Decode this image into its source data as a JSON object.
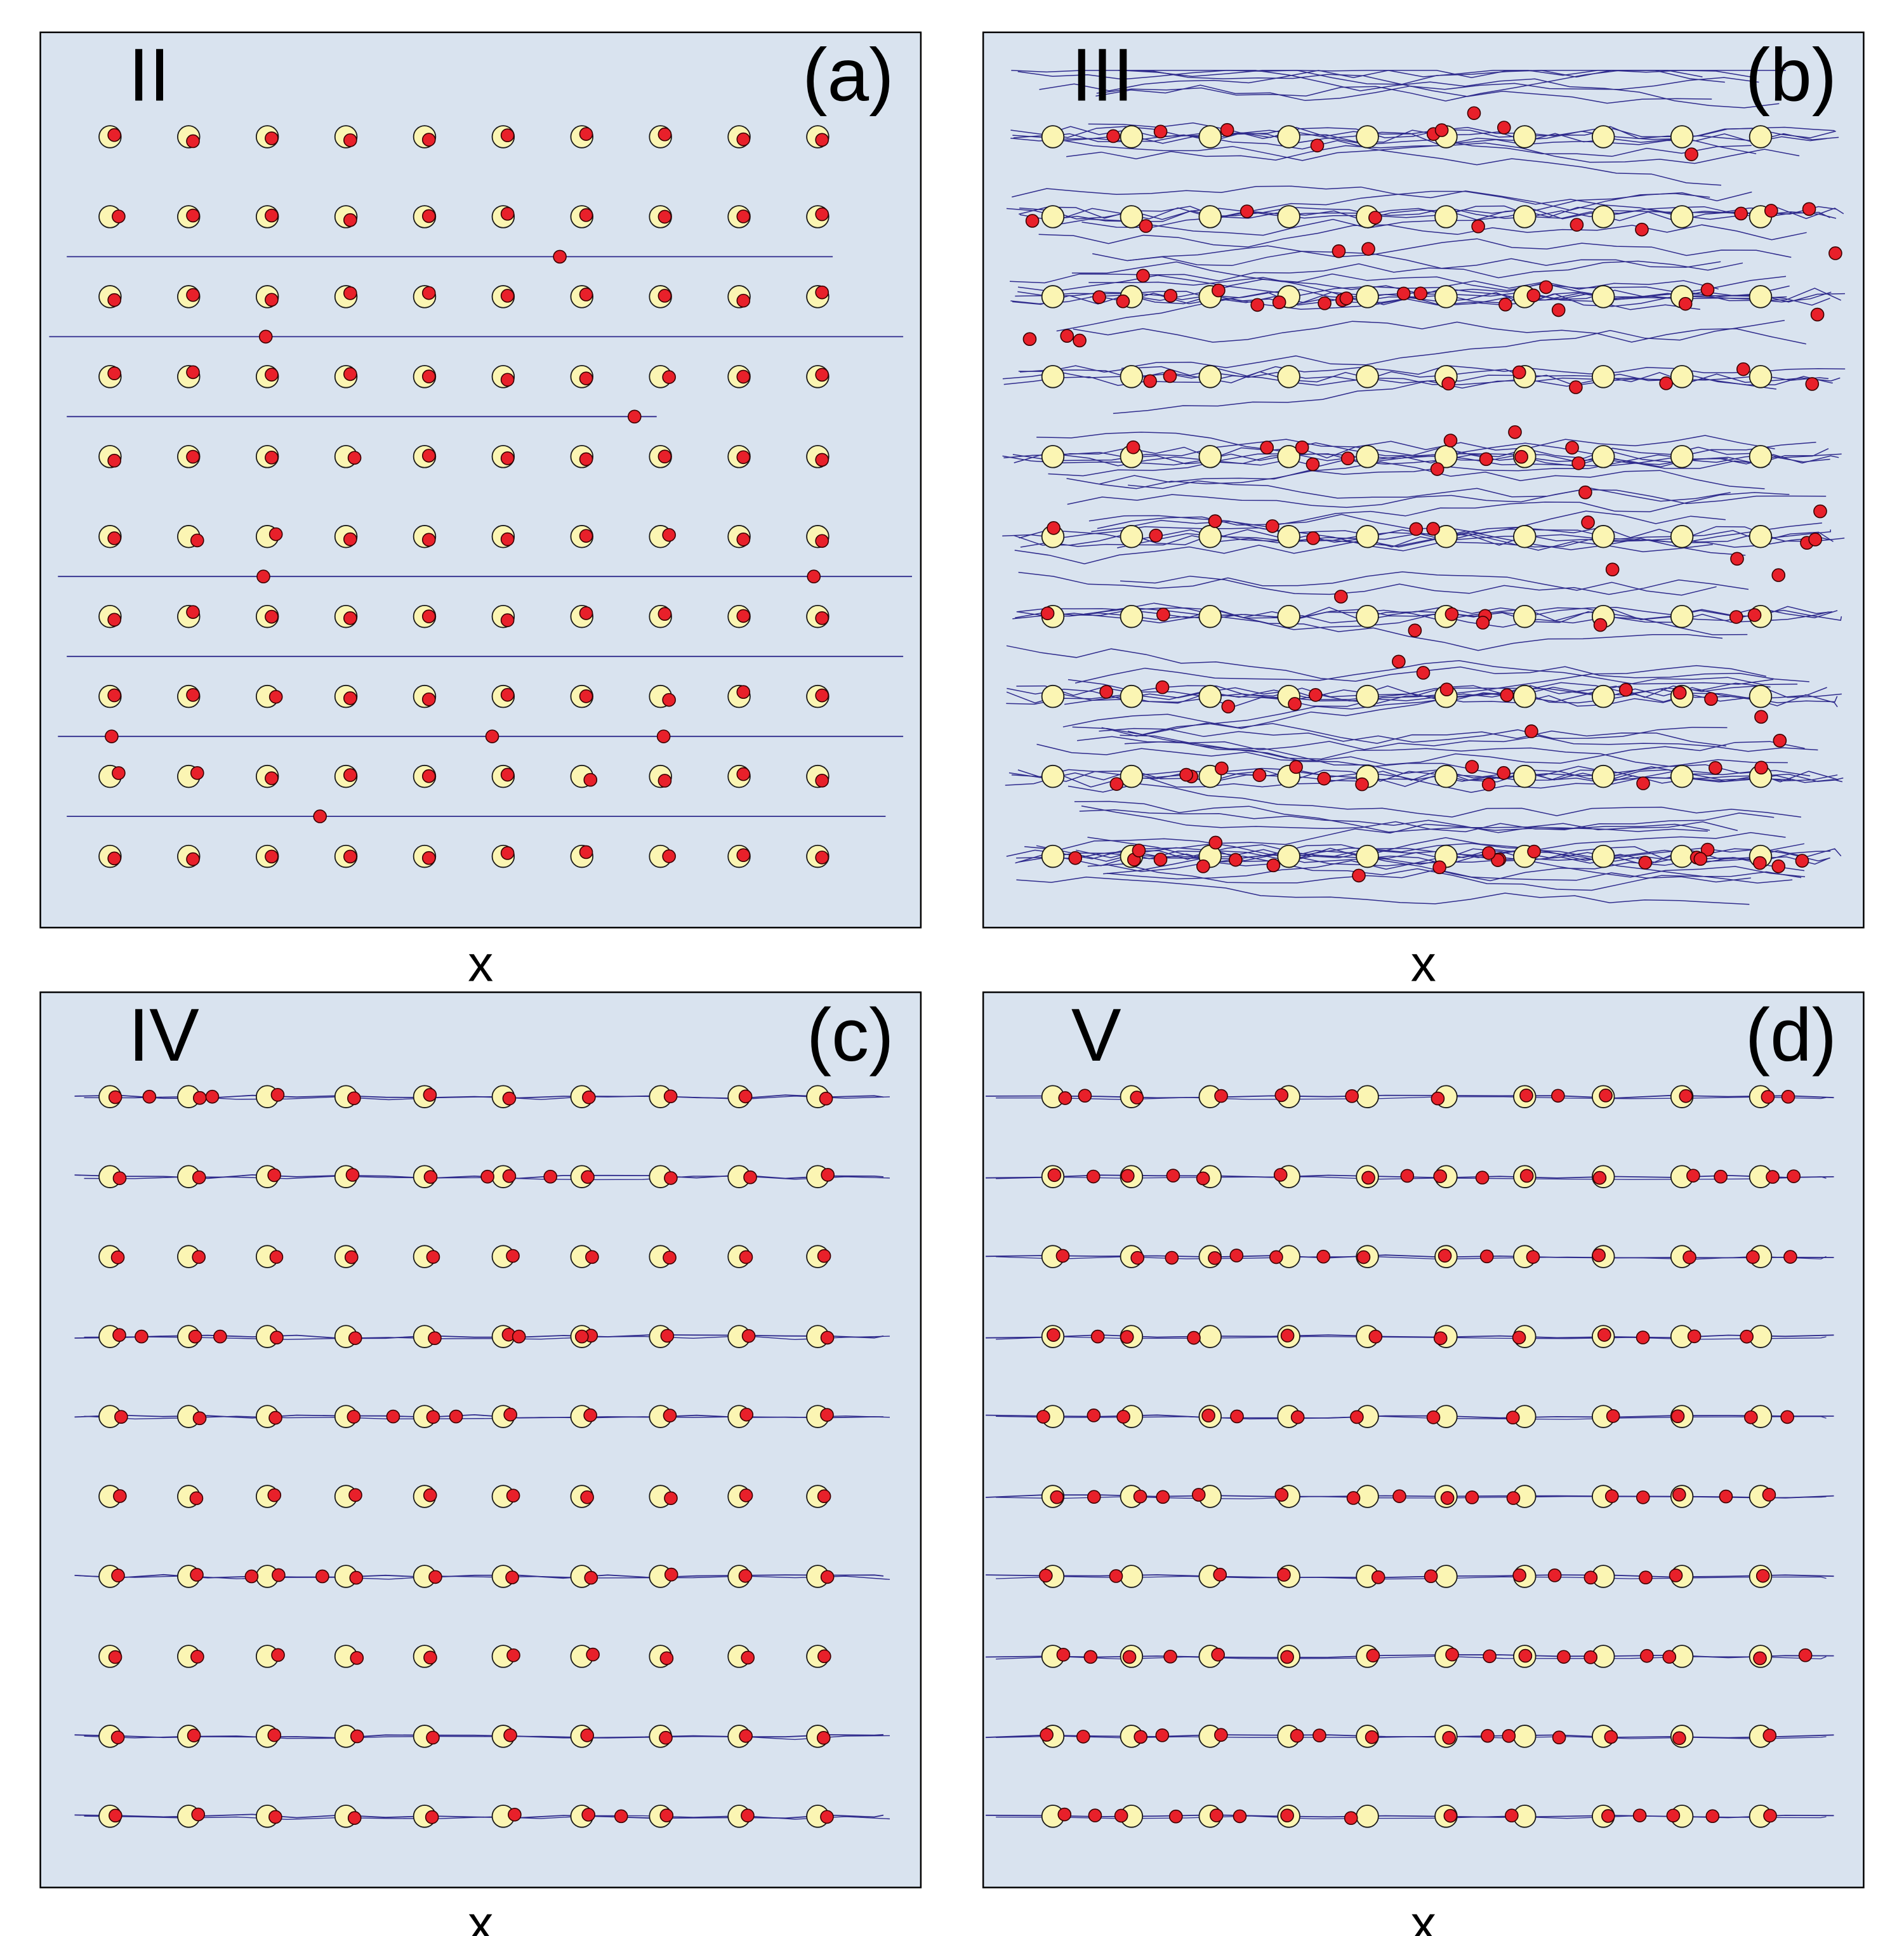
{
  "style": {
    "panel_background": "#d9e3ef",
    "panel_border": "#000000",
    "trajectory_color": "#2e2a8c",
    "pinning_site_fill": "#fbf5b3",
    "pinning_site_stroke": "#1a1a1a",
    "particle_fill": "#e8202a",
    "particle_stroke": "#3a0000"
  },
  "panels": [
    {
      "id": "a",
      "phase": "II",
      "label": "(a)",
      "x_label": "x",
      "trajectories": "sparse-straight",
      "notes": "pinned lattice with a few particles sliding along isolated straight channels"
    },
    {
      "id": "b",
      "phase": "III",
      "label": "(b)",
      "x_label": "x",
      "trajectories": "dense-disordered",
      "notes": "disordered plastic flow with many crossing trajectories"
    },
    {
      "id": "c",
      "phase": "IV",
      "label": "(c)",
      "x_label": "x",
      "trajectories": "row-channels",
      "notes": "flow confined to selected rows"
    },
    {
      "id": "d",
      "phase": "V",
      "label": "(d)",
      "x_label": "x",
      "trajectories": "all-rows",
      "notes": "ordered flow along every row"
    }
  ]
}
